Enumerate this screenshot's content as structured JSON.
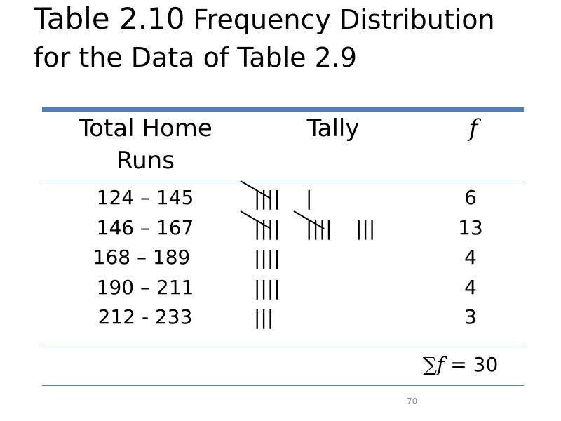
{
  "title": {
    "strong": "Table 2.10",
    "rest": " Frequency Distribution for the Data of Table 2.9"
  },
  "table": {
    "headers": {
      "class": "Total Home Runs",
      "tally": "Tally",
      "freq": "f"
    },
    "rows": [
      {
        "range": "124 – 145",
        "tally_groups": [
          "||||",
          "|"
        ],
        "freq": "6"
      },
      {
        "range": "146 – 167",
        "tally_groups": [
          "||||",
          "||||",
          "|||"
        ],
        "freq": "13"
      },
      {
        "range": "168 – 189",
        "tally_groups": [
          "||||"
        ],
        "freq": "4"
      },
      {
        "range": "190 – 211",
        "tally_groups": [
          "||||"
        ],
        "freq": "4"
      },
      {
        "range": "212 - 233",
        "tally_groups": [
          "|||"
        ],
        "freq": "3"
      }
    ],
    "total": {
      "symbol": "∑f",
      "equals": "= 30"
    }
  },
  "colors": {
    "rule": "#4f81bd",
    "page_number": "#8c8c8c"
  },
  "page_number": "70"
}
